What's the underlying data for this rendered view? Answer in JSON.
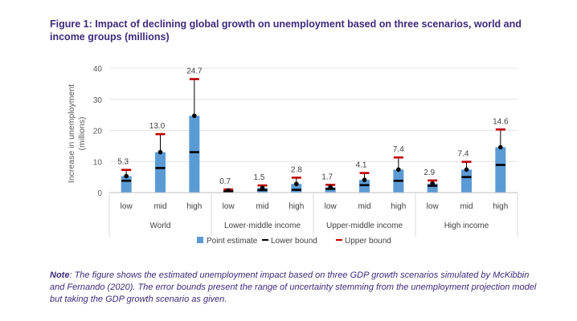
{
  "title": "Figure 1: Impact of declining global growth on unemployment based on three scenarios, world and income groups (millions)",
  "note_label": "Note",
  "note_text": ": The figure shows the estimated unemployment impact based on three GDP growth scenarios simulated by McKibbin and Fernando (2020). The error bounds present the range of uncertainty stemming from the unemployment projection model but taking the GDP growth scenario as given.",
  "colors": {
    "bar": "#5b9bd5",
    "lower": "#000000",
    "upper": "#c00000",
    "title": "#3d2a7a"
  },
  "chart_data": {
    "type": "bar",
    "ylabel": "Increase in unemployment (millions)",
    "ylim": [
      0,
      40
    ],
    "yticks": [
      0,
      10,
      20,
      30,
      40
    ],
    "groups": [
      {
        "name": "World",
        "categories": [
          "low",
          "mid",
          "high"
        ],
        "values": [
          5.3,
          13.0,
          24.7
        ],
        "labels": [
          "5.3",
          "13.0",
          "24.7"
        ],
        "lower": [
          3.8,
          7.9,
          13.0
        ],
        "upper": [
          7.3,
          18.8,
          36.5
        ]
      },
      {
        "name": "Lower-middle income",
        "categories": [
          "low",
          "mid",
          "high"
        ],
        "values": [
          0.7,
          1.5,
          2.8
        ],
        "labels": [
          "0.7",
          "1.5",
          "2.8"
        ],
        "lower": [
          0.4,
          0.8,
          0.9
        ],
        "upper": [
          1.0,
          2.3,
          4.8
        ]
      },
      {
        "name": "Upper-middle income",
        "categories": [
          "low",
          "mid",
          "high"
        ],
        "values": [
          1.7,
          4.1,
          7.4
        ],
        "labels": [
          "1.7",
          "4.1",
          "7.4"
        ],
        "lower": [
          1.2,
          2.4,
          3.8
        ],
        "upper": [
          2.5,
          6.3,
          11.3
        ]
      },
      {
        "name": "High income",
        "categories": [
          "low",
          "mid",
          "high"
        ],
        "values": [
          2.9,
          7.4,
          14.6
        ],
        "labels": [
          "2.9",
          "7.4",
          "14.6"
        ],
        "lower": [
          2.2,
          5.0,
          8.9
        ],
        "upper": [
          3.9,
          9.9,
          20.3
        ]
      }
    ],
    "legend": [
      "Point estimate",
      "Lower bound",
      "Upper bound"
    ],
    "legend_position": "bottom"
  }
}
